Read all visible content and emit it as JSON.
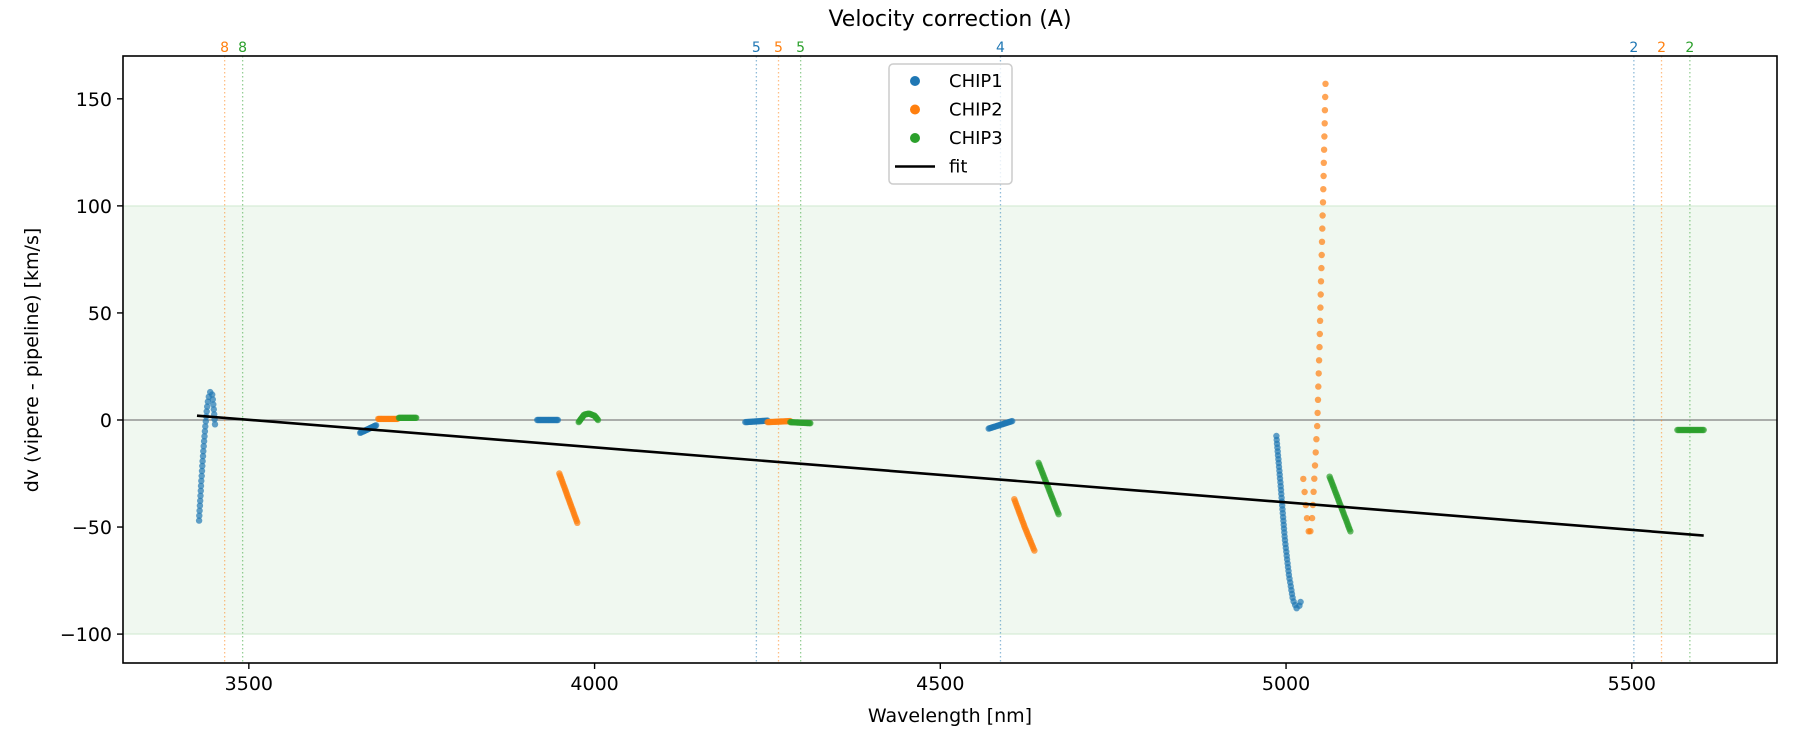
{
  "chart_data": {
    "type": "scatter",
    "title": "Velocity correction (A)",
    "xlabel": "Wavelength [nm]",
    "ylabel": "dv (vipere - pipeline) [km/s]",
    "xlim": [
      3318,
      5710
    ],
    "ylim": [
      -113.5,
      170
    ],
    "xticks": [
      3500,
      4000,
      4500,
      5000,
      5500
    ],
    "yticks": [
      -100,
      -50,
      0,
      50,
      100,
      150
    ],
    "xtick_labels": [
      "3500",
      "4000",
      "4500",
      "5000",
      "5500"
    ],
    "ytick_labels": [
      "−100",
      "−50",
      "0",
      "50",
      "100",
      "150"
    ],
    "grid": false,
    "legend_position": "top-center",
    "shaded_band": {
      "y_range": [
        -100,
        100
      ],
      "color": "#2ca02c"
    },
    "zero_line": {
      "y": 0,
      "color": "#808080"
    },
    "colors": {
      "CHIP1": "#1f77b4",
      "CHIP2": "#ff7f0e",
      "CHIP3": "#2ca02c",
      "fit": "#000000"
    },
    "series": [
      {
        "name": "CHIP1",
        "color": "#1f77b4",
        "segments": [
          {
            "points": [
              [
                3428,
                -47
              ],
              [
                3431,
                -30
              ],
              [
                3434,
                -15
              ],
              [
                3437,
                -3
              ],
              [
                3440,
                7
              ],
              [
                3443,
                12.5
              ],
              [
                3445,
                13.5
              ],
              [
                3447,
                12
              ],
              [
                3449,
                6
              ],
              [
                3451,
                -2
              ]
            ],
            "n": 34
          },
          {
            "points": [
              [
                3661,
                -6
              ],
              [
                3684,
                -2.5
              ]
            ],
            "n": 20
          },
          {
            "points": [
              [
                3917,
                0
              ],
              [
                3947,
                0
              ]
            ],
            "n": 22
          },
          {
            "points": [
              [
                4218,
                -1
              ],
              [
                4250,
                -0.3
              ]
            ],
            "n": 22
          },
          {
            "points": [
              [
                4570,
                -4
              ],
              [
                4604,
                -0.5
              ]
            ],
            "n": 22
          },
          {
            "points": [
              [
                4986,
                -7.5
              ],
              [
                4992,
                -30
              ],
              [
                4998,
                -55
              ],
              [
                5004,
                -72
              ],
              [
                5010,
                -84
              ],
              [
                5015,
                -88
              ],
              [
                5019,
                -87
              ],
              [
                5021,
                -85
              ]
            ],
            "n": 48
          }
        ]
      },
      {
        "name": "CHIP2",
        "color": "#ff7f0e",
        "segments": [
          {
            "points": [
              [
                3687,
                0.5
              ],
              [
                3715,
                0.5
              ]
            ],
            "n": 22
          },
          {
            "points": [
              [
                3949,
                -25
              ],
              [
                3975,
                -48
              ]
            ],
            "n": 26
          },
          {
            "points": [
              [
                4250,
                -1
              ],
              [
                4283,
                -0.5
              ]
            ],
            "n": 22
          },
          {
            "points": [
              [
                4607,
                -37
              ],
              [
                4622,
                -50
              ],
              [
                4636,
                -61
              ]
            ],
            "n": 26
          },
          {
            "points": [
              [
                5025,
                -27.5
              ],
              [
                5030,
                -45
              ],
              [
                5034,
                -55
              ],
              [
                5038,
                -45
              ],
              [
                5042,
                -20
              ],
              [
                5045,
                -3
              ],
              [
                5048,
                30
              ],
              [
                5051,
                70
              ],
              [
                5054,
                110
              ],
              [
                5057,
                157
              ]
            ],
            "n": 40
          }
        ]
      },
      {
        "name": "CHIP3",
        "color": "#2ca02c",
        "segments": [
          {
            "points": [
              [
                3717,
                1
              ],
              [
                3742,
                1
              ]
            ],
            "n": 22
          },
          {
            "points": [
              [
                3977,
                -1
              ],
              [
                3985,
                2.5
              ],
              [
                3992,
                3
              ],
              [
                4000,
                2
              ],
              [
                4005,
                0
              ]
            ],
            "n": 24
          },
          {
            "points": [
              [
                4283,
                -1
              ],
              [
                4312,
                -1.5
              ]
            ],
            "n": 22
          },
          {
            "points": [
              [
                4642,
                -20
              ],
              [
                4671,
                -44
              ]
            ],
            "n": 28
          },
          {
            "points": [
              [
                5063,
                -26.5
              ],
              [
                5093,
                -52
              ]
            ],
            "n": 30
          },
          {
            "points": [
              [
                5566,
                -4.7
              ],
              [
                5604,
                -4.7
              ]
            ],
            "n": 22
          }
        ]
      }
    ],
    "fit": {
      "name": "fit",
      "x": [
        3425,
        5604
      ],
      "y": [
        2,
        -54
      ]
    },
    "legend": [
      {
        "label": "CHIP1",
        "kind": "marker",
        "color": "#1f77b4"
      },
      {
        "label": "CHIP2",
        "kind": "marker",
        "color": "#ff7f0e"
      },
      {
        "label": "CHIP3",
        "kind": "marker",
        "color": "#2ca02c"
      },
      {
        "label": "fit",
        "kind": "line",
        "color": "#000000"
      }
    ],
    "order_lines": [
      {
        "x": 3465,
        "label": "8",
        "color": "#ff7f0e"
      },
      {
        "x": 3491,
        "label": "8",
        "color": "#2ca02c"
      },
      {
        "x": 4234,
        "label": "5",
        "color": "#1f77b4"
      },
      {
        "x": 4266,
        "label": "5",
        "color": "#ff7f0e"
      },
      {
        "x": 4298,
        "label": "5",
        "color": "#2ca02c"
      },
      {
        "x": 4587,
        "label": "4",
        "color": "#1f77b4"
      },
      {
        "x": 5503,
        "label": "2",
        "color": "#1f77b4"
      },
      {
        "x": 5543,
        "label": "2",
        "color": "#ff7f0e"
      },
      {
        "x": 5584,
        "label": "2",
        "color": "#2ca02c"
      }
    ]
  }
}
